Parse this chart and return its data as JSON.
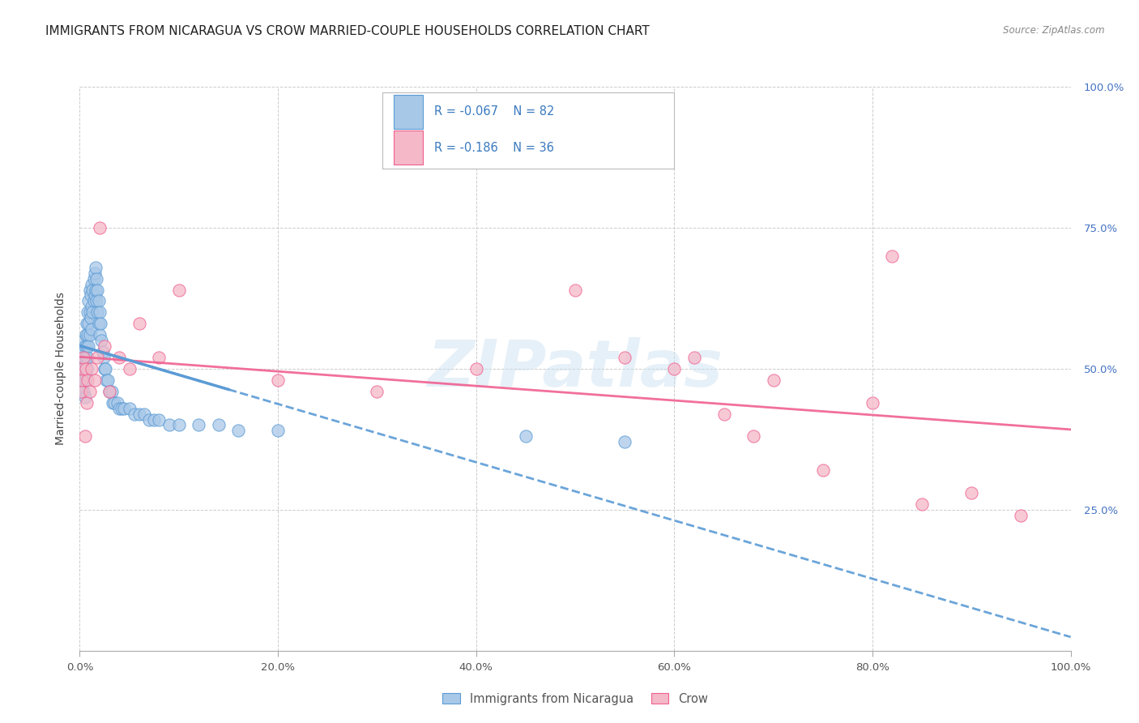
{
  "title": "IMMIGRANTS FROM NICARAGUA VS CROW MARRIED-COUPLE HOUSEHOLDS CORRELATION CHART",
  "source": "Source: ZipAtlas.com",
  "ylabel": "Married-couple Households",
  "xmin": 0.0,
  "xmax": 1.0,
  "ymin": 0.0,
  "ymax": 1.0,
  "xtick_positions": [
    0.0,
    0.2,
    0.4,
    0.6,
    0.8,
    1.0
  ],
  "xtick_labels": [
    "0.0%",
    "20.0%",
    "40.0%",
    "60.0%",
    "80.0%",
    "100.0%"
  ],
  "ytick_positions": [
    0.25,
    0.5,
    0.75,
    1.0
  ],
  "ytick_labels": [
    "25.0%",
    "50.0%",
    "75.0%",
    "100.0%"
  ],
  "legend_labels": [
    "Immigrants from Nicaragua",
    "Crow"
  ],
  "blue_R": -0.067,
  "blue_N": 82,
  "pink_R": -0.186,
  "pink_N": 36,
  "blue_color": "#a8c8e8",
  "pink_color": "#f4b8c8",
  "trendline_blue_color": "#5b9bd5",
  "trendline_pink_color": "#f06090",
  "watermark": "ZIPatlas",
  "blue_scatter_x": [
    0.001,
    0.001,
    0.002,
    0.002,
    0.002,
    0.003,
    0.003,
    0.003,
    0.004,
    0.004,
    0.004,
    0.005,
    0.005,
    0.005,
    0.005,
    0.006,
    0.006,
    0.006,
    0.007,
    0.007,
    0.007,
    0.008,
    0.008,
    0.008,
    0.009,
    0.009,
    0.009,
    0.01,
    0.01,
    0.01,
    0.011,
    0.011,
    0.012,
    0.012,
    0.012,
    0.013,
    0.013,
    0.014,
    0.014,
    0.015,
    0.015,
    0.016,
    0.016,
    0.017,
    0.017,
    0.018,
    0.018,
    0.019,
    0.019,
    0.02,
    0.02,
    0.021,
    0.022,
    0.023,
    0.024,
    0.025,
    0.026,
    0.027,
    0.028,
    0.03,
    0.032,
    0.033,
    0.035,
    0.038,
    0.04,
    0.042,
    0.045,
    0.05,
    0.055,
    0.06,
    0.065,
    0.07,
    0.075,
    0.08,
    0.09,
    0.1,
    0.12,
    0.14,
    0.16,
    0.2,
    0.45,
    0.55
  ],
  "blue_scatter_y": [
    0.5,
    0.48,
    0.52,
    0.49,
    0.47,
    0.53,
    0.51,
    0.48,
    0.55,
    0.5,
    0.46,
    0.54,
    0.51,
    0.48,
    0.45,
    0.56,
    0.52,
    0.49,
    0.58,
    0.54,
    0.5,
    0.6,
    0.56,
    0.52,
    0.62,
    0.58,
    0.54,
    0.64,
    0.6,
    0.56,
    0.63,
    0.59,
    0.65,
    0.61,
    0.57,
    0.64,
    0.6,
    0.66,
    0.62,
    0.67,
    0.63,
    0.68,
    0.64,
    0.66,
    0.62,
    0.64,
    0.6,
    0.62,
    0.58,
    0.6,
    0.56,
    0.58,
    0.55,
    0.53,
    0.52,
    0.5,
    0.5,
    0.48,
    0.48,
    0.46,
    0.46,
    0.44,
    0.44,
    0.44,
    0.43,
    0.43,
    0.43,
    0.43,
    0.42,
    0.42,
    0.42,
    0.41,
    0.41,
    0.41,
    0.4,
    0.4,
    0.4,
    0.4,
    0.39,
    0.39,
    0.38,
    0.37
  ],
  "pink_scatter_x": [
    0.001,
    0.002,
    0.003,
    0.004,
    0.005,
    0.006,
    0.007,
    0.008,
    0.01,
    0.012,
    0.015,
    0.018,
    0.02,
    0.025,
    0.03,
    0.04,
    0.05,
    0.06,
    0.08,
    0.1,
    0.2,
    0.3,
    0.4,
    0.5,
    0.55,
    0.6,
    0.62,
    0.65,
    0.68,
    0.7,
    0.75,
    0.8,
    0.82,
    0.85,
    0.9,
    0.95
  ],
  "pink_scatter_y": [
    0.46,
    0.48,
    0.5,
    0.52,
    0.38,
    0.5,
    0.44,
    0.48,
    0.46,
    0.5,
    0.48,
    0.52,
    0.75,
    0.54,
    0.46,
    0.52,
    0.5,
    0.58,
    0.52,
    0.64,
    0.48,
    0.46,
    0.5,
    0.64,
    0.52,
    0.5,
    0.52,
    0.42,
    0.38,
    0.48,
    0.32,
    0.44,
    0.7,
    0.26,
    0.28,
    0.24
  ]
}
